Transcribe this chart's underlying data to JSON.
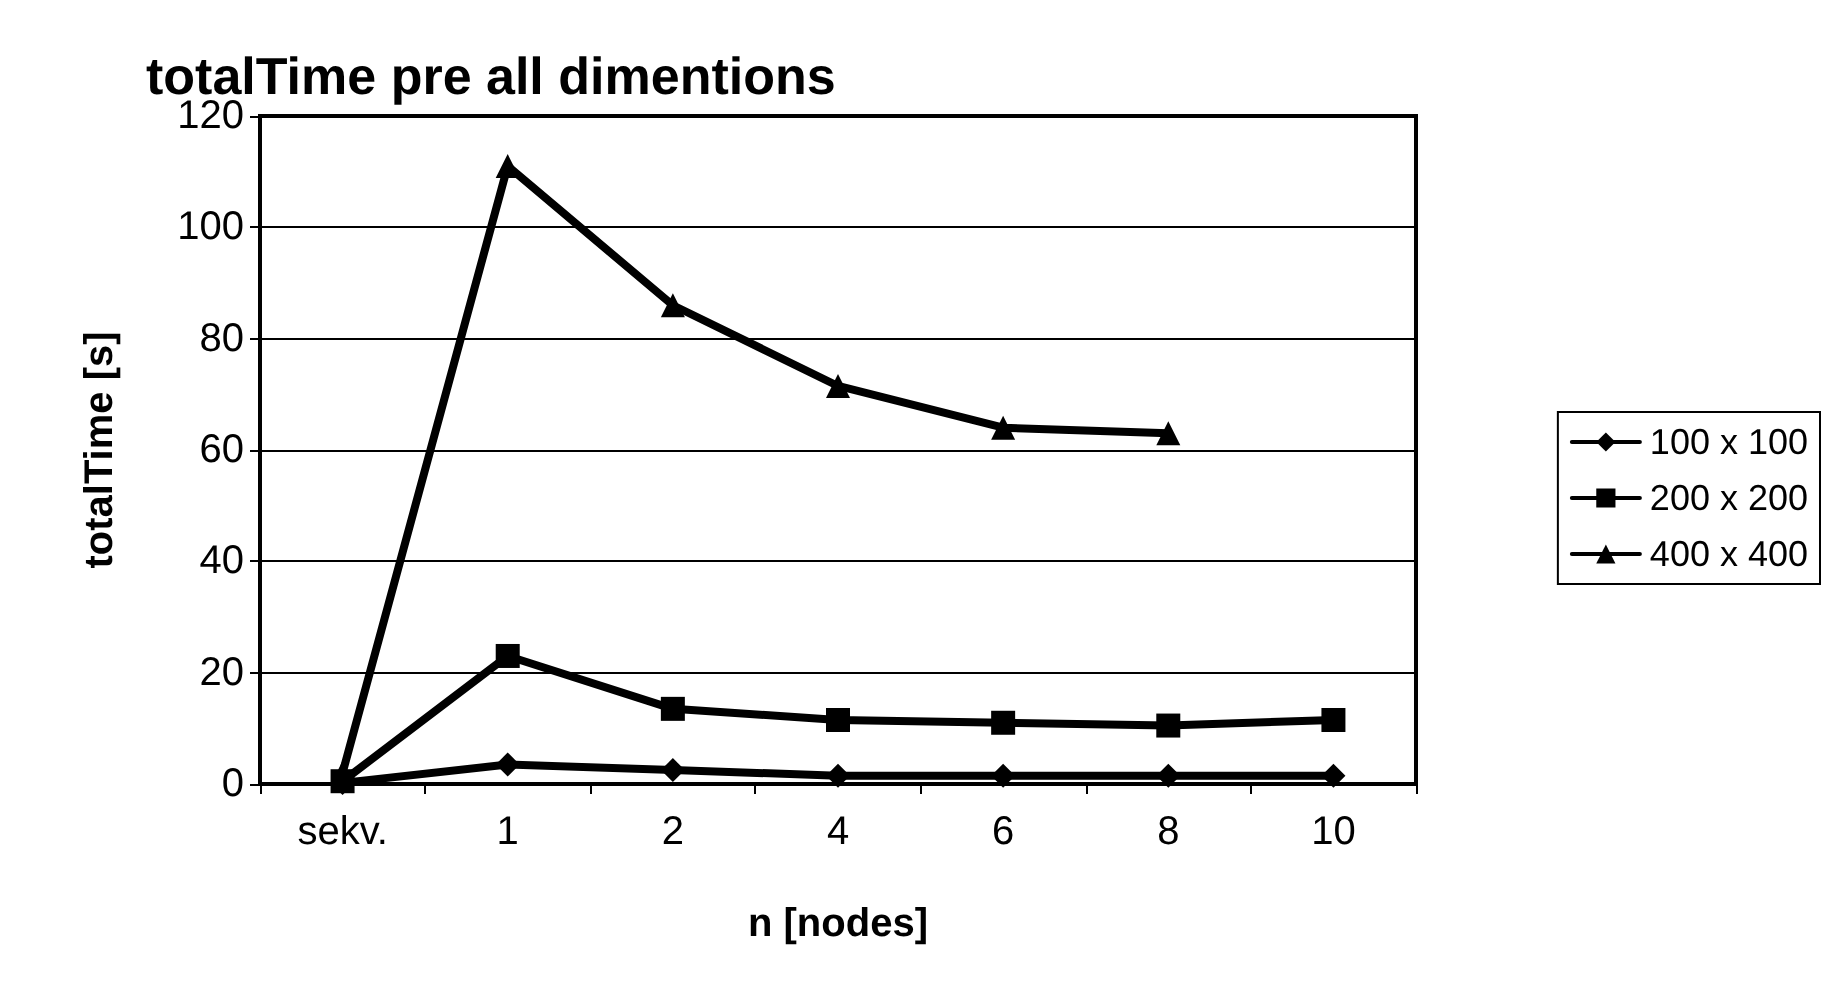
{
  "chart_data": {
    "type": "line",
    "title": "totalTime pre all dimentions",
    "xlabel": "n [nodes]",
    "ylabel": "totalTime [s]",
    "categories": [
      "sekv.",
      "1",
      "2",
      "4",
      "6",
      "8",
      "10"
    ],
    "series": [
      {
        "name": "100 x 100",
        "color": "#000000",
        "marker": "diamond",
        "values": [
          0.2,
          3.5,
          2.5,
          1.5,
          1.5,
          1.5,
          1.5
        ]
      },
      {
        "name": "200 x 200",
        "color": "#000000",
        "marker": "square",
        "values": [
          0.5,
          23,
          13.5,
          11.5,
          11,
          10.5,
          11.5
        ]
      },
      {
        "name": "400 x 400",
        "color": "#000000",
        "marker": "triangle",
        "values": [
          2,
          111,
          86,
          71.5,
          64,
          63,
          null
        ]
      }
    ],
    "ylim": [
      0,
      120
    ],
    "yticks": [
      0,
      20,
      40,
      60,
      80,
      100,
      120
    ],
    "grid": "y",
    "legend": "right",
    "line_style": "solid"
  }
}
